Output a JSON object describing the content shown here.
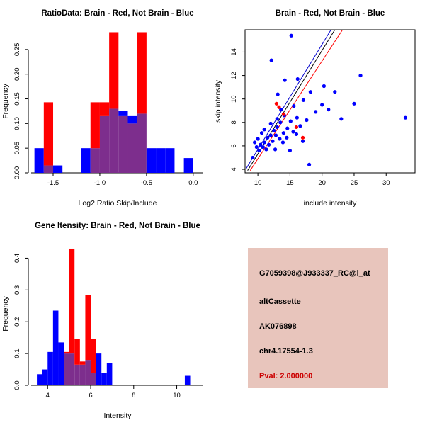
{
  "chart_data": [
    {
      "id": "ratio-hist",
      "type": "bar",
      "title": "RatioData: Brain - Red, Not Brain - Blue",
      "xlabel": "Log2 Ratio Skip/Include",
      "ylabel": "Frequency",
      "xlim": [
        -1.72,
        0.1
      ],
      "ylim": [
        0,
        0.29
      ],
      "xticks": [
        -1.5,
        -1.0,
        -0.5,
        0.0
      ],
      "xtick_labels": [
        "-1.5",
        "-1.0",
        "-0.5",
        "0.0"
      ],
      "yticks": [
        0,
        0.05,
        0.1,
        0.15,
        0.2,
        0.25
      ],
      "ytick_labels": [
        "0.00",
        "0.05",
        "0.10",
        "0.15",
        "0.20",
        "0.25"
      ],
      "bin_width": 0.1,
      "red_color": "#FF0000",
      "blue_color": "#0000FF",
      "overlap_color": "#7D2E8D",
      "legend": [
        {
          "name": "Brain",
          "color": "#FF0000"
        },
        {
          "name": "Not Brain",
          "color": "#0000FF"
        }
      ],
      "bins": [
        {
          "x": -1.65,
          "blue": 0.05,
          "red": 0
        },
        {
          "x": -1.55,
          "blue": 0.015,
          "red": 0.143
        },
        {
          "x": -1.45,
          "blue": 0.015,
          "red": 0
        },
        {
          "x": -1.15,
          "blue": 0.05,
          "red": 0
        },
        {
          "x": -1.05,
          "blue": 0.05,
          "red": 0.143
        },
        {
          "x": -0.95,
          "blue": 0.115,
          "red": 0.143
        },
        {
          "x": -0.85,
          "blue": 0.13,
          "red": 0.285
        },
        {
          "x": -0.75,
          "blue": 0.125,
          "red": 0.115
        },
        {
          "x": -0.65,
          "blue": 0.115,
          "red": 0.1
        },
        {
          "x": -0.55,
          "blue": 0.12,
          "red": 0.285
        },
        {
          "x": -0.45,
          "blue": 0.05,
          "red": 0
        },
        {
          "x": -0.35,
          "blue": 0.05,
          "red": 0
        },
        {
          "x": -0.25,
          "blue": 0.05,
          "red": 0
        },
        {
          "x": -0.05,
          "blue": 0.03,
          "red": 0
        }
      ]
    },
    {
      "id": "scatter",
      "type": "scatter",
      "title": "Brain - Red, Not Brain - Blue",
      "xlabel": "include intensity",
      "ylabel": "skip intensity",
      "xlim": [
        8,
        34.5
      ],
      "ylim": [
        3.7,
        15.9
      ],
      "xticks": [
        10,
        15,
        20,
        25,
        30
      ],
      "xtick_labels": [
        "10",
        "15",
        "20",
        "25",
        "30"
      ],
      "yticks": [
        4,
        6,
        8,
        10,
        12,
        14
      ],
      "ytick_labels": [
        "4",
        "6",
        "8",
        "10",
        "12",
        "14"
      ],
      "red_color": "#FF0000",
      "blue_color": "#0000FF",
      "legend": [
        {
          "name": "Brain",
          "color": "#FF0000"
        },
        {
          "name": "Not Brain",
          "color": "#0000FF"
        }
      ],
      "lines": [
        {
          "color": "#FF0000",
          "x1": 8.8,
          "y1": 3.9,
          "x2": 23.2,
          "y2": 15.9
        },
        {
          "color": "#000000",
          "x1": 8.4,
          "y1": 3.9,
          "x2": 22.0,
          "y2": 15.9
        },
        {
          "color": "#0000CD",
          "x1": 8.1,
          "y1": 4.0,
          "x2": 21.4,
          "y2": 15.9
        }
      ],
      "points": {
        "blue": [
          [
            9.2,
            5.0
          ],
          [
            9.5,
            6.3
          ],
          [
            9.8,
            5.9
          ],
          [
            10.0,
            6.6
          ],
          [
            10.2,
            5.6
          ],
          [
            10.4,
            6.1
          ],
          [
            10.6,
            7.1
          ],
          [
            10.8,
            5.9
          ],
          [
            11.0,
            6.3
          ],
          [
            11.0,
            7.4
          ],
          [
            11.3,
            5.7
          ],
          [
            11.5,
            6.7
          ],
          [
            11.7,
            6.1
          ],
          [
            12.0,
            6.9
          ],
          [
            12.0,
            7.9
          ],
          [
            12.1,
            13.3
          ],
          [
            12.3,
            6.4
          ],
          [
            12.5,
            7.3
          ],
          [
            12.7,
            5.7
          ],
          [
            12.8,
            6.9
          ],
          [
            13.0,
            7.6
          ],
          [
            13.0,
            8.3
          ],
          [
            13.1,
            10.4
          ],
          [
            13.4,
            6.6
          ],
          [
            13.5,
            8.0
          ],
          [
            13.6,
            9.1
          ],
          [
            13.9,
            6.3
          ],
          [
            14.0,
            7.1
          ],
          [
            14.1,
            8.6
          ],
          [
            14.2,
            11.6
          ],
          [
            14.5,
            6.7
          ],
          [
            14.6,
            7.5
          ],
          [
            15.0,
            5.6
          ],
          [
            15.1,
            8.1
          ],
          [
            15.2,
            15.4
          ],
          [
            15.5,
            7.2
          ],
          [
            15.6,
            9.4
          ],
          [
            16.0,
            7.0
          ],
          [
            16.1,
            8.4
          ],
          [
            16.2,
            11.7
          ],
          [
            16.6,
            7.7
          ],
          [
            17.0,
            6.4
          ],
          [
            17.1,
            9.9
          ],
          [
            17.6,
            8.2
          ],
          [
            18.0,
            4.4
          ],
          [
            18.2,
            10.6
          ],
          [
            19.0,
            8.9
          ],
          [
            20.0,
            9.5
          ],
          [
            20.3,
            11.1
          ],
          [
            21.0,
            9.1
          ],
          [
            22.0,
            10.6
          ],
          [
            23.0,
            8.3
          ],
          [
            25.0,
            9.6
          ],
          [
            26.0,
            12.0
          ],
          [
            33.0,
            8.4
          ]
        ],
        "red": [
          [
            12.9,
            9.6
          ],
          [
            13.3,
            9.3
          ],
          [
            14.0,
            8.7
          ],
          [
            16.0,
            7.6
          ],
          [
            17.0,
            6.7
          ]
        ]
      }
    },
    {
      "id": "gene-hist",
      "type": "bar",
      "title": "Gene Itensity: Brain - Red, Not Brain - Blue",
      "xlabel": "Intensity",
      "ylabel": "Frequency",
      "xlim": [
        3.3,
        11.2
      ],
      "ylim": [
        0,
        0.45
      ],
      "xticks": [
        4,
        6,
        8,
        10
      ],
      "xtick_labels": [
        "4",
        "6",
        "8",
        "10"
      ],
      "yticks": [
        0,
        0.1,
        0.2,
        0.3,
        0.4
      ],
      "ytick_labels": [
        "0.0",
        "0.1",
        "0.2",
        "0.3",
        "0.4"
      ],
      "bin_width": 0.25,
      "red_color": "#FF0000",
      "blue_color": "#0000FF",
      "overlap_color": "#7D2E8D",
      "legend": [
        {
          "name": "Brain",
          "color": "#FF0000"
        },
        {
          "name": "Not Brain",
          "color": "#0000FF"
        }
      ],
      "bins": [
        {
          "x": 3.625,
          "blue": 0.035,
          "red": 0
        },
        {
          "x": 3.875,
          "blue": 0.05,
          "red": 0
        },
        {
          "x": 4.125,
          "blue": 0.105,
          "red": 0
        },
        {
          "x": 4.375,
          "blue": 0.235,
          "red": 0
        },
        {
          "x": 4.625,
          "blue": 0.135,
          "red": 0
        },
        {
          "x": 4.875,
          "blue": 0.1,
          "red": 0.105
        },
        {
          "x": 5.125,
          "blue": 0.1,
          "red": 0.43
        },
        {
          "x": 5.375,
          "blue": 0.065,
          "red": 0.145
        },
        {
          "x": 5.625,
          "blue": 0.065,
          "red": 0.075
        },
        {
          "x": 5.875,
          "blue": 0.08,
          "red": 0.285
        },
        {
          "x": 6.125,
          "blue": 0.04,
          "red": 0.145
        },
        {
          "x": 6.375,
          "blue": 0.1,
          "red": 0
        },
        {
          "x": 6.625,
          "blue": 0.04,
          "red": 0
        },
        {
          "x": 6.875,
          "blue": 0.07,
          "red": 0
        },
        {
          "x": 10.5,
          "blue": 0.03,
          "red": 0
        }
      ]
    }
  ],
  "info_box": {
    "bg": "#E8C5BC",
    "lines": [
      {
        "text": "G7059398@J933337_RC@i_at",
        "color": "#000000"
      },
      {
        "text": "altCassette",
        "color": "#000000"
      },
      {
        "text": "AK076898",
        "color": "#000000"
      },
      {
        "text": "chr4.17554-1.3",
        "color": "#000000"
      },
      {
        "text": "Pval: 2.000000",
        "color": "#CC0000"
      }
    ]
  }
}
